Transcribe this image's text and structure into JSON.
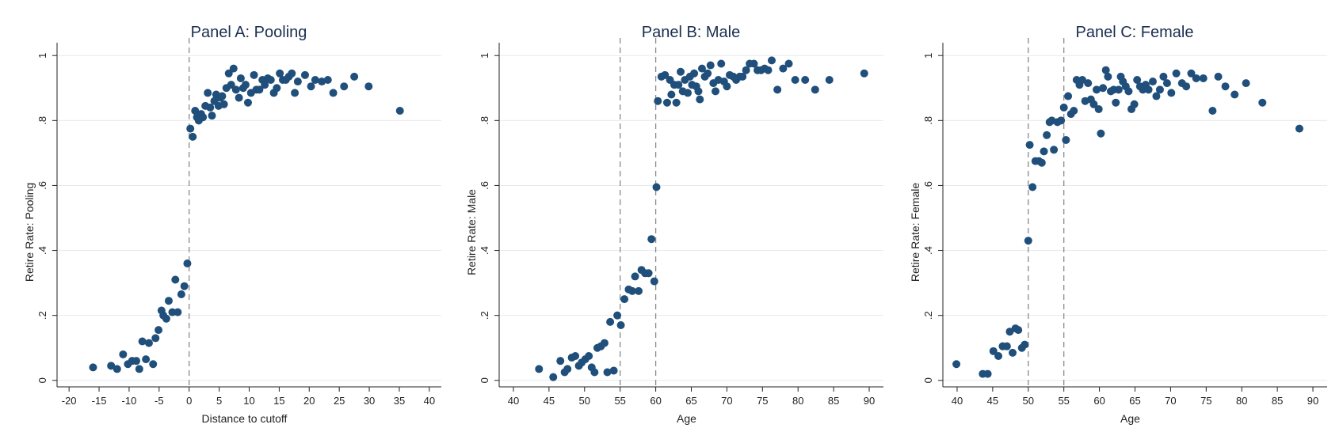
{
  "chart_data": [
    {
      "type": "scatter",
      "title": "Panel A: Pooling",
      "xlabel": "Distance to cutoff",
      "ylabel": "Retire Rate: Pooling",
      "xlim": [
        -22,
        42
      ],
      "ylim": [
        -0.02,
        1.02
      ],
      "xticks": [
        -20,
        -15,
        -10,
        -5,
        0,
        5,
        10,
        15,
        20,
        25,
        30,
        35,
        40
      ],
      "xtick_labels": [
        "-20",
        "-15",
        "-10",
        "-5",
        "0",
        "5",
        "10",
        "15",
        "20",
        "25",
        "30",
        "35",
        "40"
      ],
      "yticks": [
        0,
        0.2,
        0.4,
        0.6,
        0.8,
        1
      ],
      "ytick_labels": [
        "0",
        ".2",
        ".4",
        ".6",
        ".8",
        "1"
      ],
      "vlines": [
        0
      ],
      "grid": true,
      "color": "#1f4f7a",
      "points": [
        [
          -16,
          0.04
        ],
        [
          -13,
          0.045
        ],
        [
          -12,
          0.035
        ],
        [
          -11,
          0.08
        ],
        [
          -10.2,
          0.05
        ],
        [
          -9.5,
          0.06
        ],
        [
          -8.8,
          0.06
        ],
        [
          -8.3,
          0.035
        ],
        [
          -7.8,
          0.12
        ],
        [
          -7.2,
          0.065
        ],
        [
          -6.7,
          0.115
        ],
        [
          -6,
          0.05
        ],
        [
          -5.6,
          0.13
        ],
        [
          -5.1,
          0.155
        ],
        [
          -4.6,
          0.215
        ],
        [
          -4.3,
          0.2
        ],
        [
          -3.8,
          0.19
        ],
        [
          -3.4,
          0.245
        ],
        [
          -2.8,
          0.21
        ],
        [
          -2.3,
          0.31
        ],
        [
          -1.9,
          0.21
        ],
        [
          -1.3,
          0.265
        ],
        [
          -0.8,
          0.29
        ],
        [
          -0.3,
          0.36
        ],
        [
          0.2,
          0.775
        ],
        [
          0.6,
          0.75
        ],
        [
          1,
          0.83
        ],
        [
          1.3,
          0.81
        ],
        [
          1.6,
          0.8
        ],
        [
          2,
          0.82
        ],
        [
          2.3,
          0.81
        ],
        [
          2.7,
          0.845
        ],
        [
          3.1,
          0.885
        ],
        [
          3.5,
          0.84
        ],
        [
          3.8,
          0.815
        ],
        [
          4.2,
          0.86
        ],
        [
          4.5,
          0.88
        ],
        [
          4.9,
          0.845
        ],
        [
          5.2,
          0.87
        ],
        [
          5.5,
          0.875
        ],
        [
          5.8,
          0.85
        ],
        [
          6.2,
          0.9
        ],
        [
          6.6,
          0.945
        ],
        [
          7,
          0.91
        ],
        [
          7.4,
          0.96
        ],
        [
          7.8,
          0.895
        ],
        [
          8.3,
          0.87
        ],
        [
          8.6,
          0.93
        ],
        [
          9,
          0.9
        ],
        [
          9.4,
          0.91
        ],
        [
          9.8,
          0.855
        ],
        [
          10.3,
          0.885
        ],
        [
          10.8,
          0.94
        ],
        [
          11.2,
          0.895
        ],
        [
          11.7,
          0.895
        ],
        [
          12.2,
          0.925
        ],
        [
          12.6,
          0.91
        ],
        [
          13.1,
          0.93
        ],
        [
          13.6,
          0.925
        ],
        [
          14.1,
          0.885
        ],
        [
          14.6,
          0.9
        ],
        [
          15.1,
          0.945
        ],
        [
          15.6,
          0.925
        ],
        [
          16.1,
          0.925
        ],
        [
          16.6,
          0.935
        ],
        [
          17.1,
          0.945
        ],
        [
          17.6,
          0.885
        ],
        [
          18.1,
          0.92
        ],
        [
          19.3,
          0.94
        ],
        [
          20.3,
          0.905
        ],
        [
          21,
          0.925
        ],
        [
          22.1,
          0.92
        ],
        [
          23.1,
          0.925
        ],
        [
          24,
          0.885
        ],
        [
          25.8,
          0.905
        ],
        [
          27.5,
          0.935
        ],
        [
          29.9,
          0.905
        ],
        [
          35.1,
          0.83
        ]
      ]
    },
    {
      "type": "scatter",
      "title": "Panel B: Male",
      "xlabel": "Age",
      "ylabel": "Retire Rate: Male",
      "xlim": [
        38,
        92
      ],
      "ylim": [
        -0.02,
        1.02
      ],
      "xticks": [
        40,
        45,
        50,
        55,
        60,
        65,
        70,
        75,
        80,
        85,
        90
      ],
      "xtick_labels": [
        "40",
        "45",
        "50",
        "55",
        "60",
        "65",
        "70",
        "75",
        "80",
        "85",
        "90"
      ],
      "yticks": [
        0,
        0.2,
        0.4,
        0.6,
        0.8,
        1
      ],
      "ytick_labels": [
        "0",
        ".2",
        ".4",
        ".6",
        ".8",
        "1"
      ],
      "vlines": [
        55,
        60
      ],
      "grid": true,
      "color": "#1f4f7a",
      "points": [
        [
          43.6,
          0.035
        ],
        [
          45.6,
          0.01
        ],
        [
          46.6,
          0.06
        ],
        [
          47.2,
          0.025
        ],
        [
          47.6,
          0.035
        ],
        [
          48.2,
          0.07
        ],
        [
          48.7,
          0.075
        ],
        [
          49.2,
          0.045
        ],
        [
          49.6,
          0.055
        ],
        [
          50.1,
          0.065
        ],
        [
          50.6,
          0.075
        ],
        [
          51,
          0.04
        ],
        [
          51.4,
          0.025
        ],
        [
          51.8,
          0.1
        ],
        [
          52.3,
          0.105
        ],
        [
          52.8,
          0.115
        ],
        [
          53.2,
          0.025
        ],
        [
          53.6,
          0.18
        ],
        [
          54.1,
          0.03
        ],
        [
          54.6,
          0.2
        ],
        [
          55.1,
          0.17
        ],
        [
          55.6,
          0.25
        ],
        [
          56.2,
          0.28
        ],
        [
          56.7,
          0.275
        ],
        [
          57.1,
          0.32
        ],
        [
          57.6,
          0.275
        ],
        [
          58,
          0.34
        ],
        [
          58.5,
          0.33
        ],
        [
          59,
          0.33
        ],
        [
          59.4,
          0.435
        ],
        [
          59.8,
          0.305
        ],
        [
          60.1,
          0.595
        ],
        [
          60.3,
          0.86
        ],
        [
          60.8,
          0.935
        ],
        [
          61.3,
          0.94
        ],
        [
          61.6,
          0.855
        ],
        [
          62,
          0.925
        ],
        [
          62.2,
          0.88
        ],
        [
          62.6,
          0.91
        ],
        [
          62.9,
          0.855
        ],
        [
          63.2,
          0.91
        ],
        [
          63.5,
          0.95
        ],
        [
          63.8,
          0.89
        ],
        [
          64.1,
          0.925
        ],
        [
          64.5,
          0.885
        ],
        [
          64.8,
          0.935
        ],
        [
          65.1,
          0.91
        ],
        [
          65.4,
          0.945
        ],
        [
          65.7,
          0.905
        ],
        [
          66,
          0.89
        ],
        [
          66.2,
          0.865
        ],
        [
          66.5,
          0.96
        ],
        [
          66.9,
          0.935
        ],
        [
          67.3,
          0.945
        ],
        [
          67.7,
          0.97
        ],
        [
          68.1,
          0.915
        ],
        [
          68.4,
          0.89
        ],
        [
          68.8,
          0.925
        ],
        [
          69.2,
          0.975
        ],
        [
          69.6,
          0.92
        ],
        [
          70,
          0.905
        ],
        [
          70.4,
          0.94
        ],
        [
          70.9,
          0.935
        ],
        [
          71.3,
          0.925
        ],
        [
          71.8,
          0.935
        ],
        [
          72.2,
          0.935
        ],
        [
          72.7,
          0.955
        ],
        [
          73.2,
          0.975
        ],
        [
          73.8,
          0.975
        ],
        [
          74.3,
          0.955
        ],
        [
          74.8,
          0.955
        ],
        [
          75.3,
          0.96
        ],
        [
          75.8,
          0.955
        ],
        [
          76.3,
          0.985
        ],
        [
          77.1,
          0.895
        ],
        [
          77.9,
          0.96
        ],
        [
          78.7,
          0.975
        ],
        [
          79.6,
          0.925
        ],
        [
          81,
          0.925
        ],
        [
          82.4,
          0.895
        ],
        [
          84.4,
          0.925
        ],
        [
          89.3,
          0.945
        ]
      ]
    },
    {
      "type": "scatter",
      "title": "Panel C: Female",
      "xlabel": "Age",
      "ylabel": "Retire Rate: Female",
      "xlim": [
        38,
        92
      ],
      "ylim": [
        -0.02,
        1.02
      ],
      "xticks": [
        40,
        45,
        50,
        55,
        60,
        65,
        70,
        75,
        80,
        85,
        90
      ],
      "xtick_labels": [
        "40",
        "45",
        "50",
        "55",
        "60",
        "65",
        "70",
        "75",
        "80",
        "85",
        "90"
      ],
      "yticks": [
        0,
        0.2,
        0.4,
        0.6,
        0.8,
        1
      ],
      "ytick_labels": [
        "0",
        ".2",
        ".4",
        ".6",
        ".8",
        "1"
      ],
      "vlines": [
        50,
        55
      ],
      "grid": true,
      "color": "#1f4f7a",
      "points": [
        [
          39.9,
          0.05
        ],
        [
          43.6,
          0.02
        ],
        [
          44.3,
          0.02
        ],
        [
          45.1,
          0.09
        ],
        [
          45.8,
          0.075
        ],
        [
          46.4,
          0.105
        ],
        [
          47,
          0.105
        ],
        [
          47.4,
          0.15
        ],
        [
          47.8,
          0.085
        ],
        [
          48.2,
          0.16
        ],
        [
          48.6,
          0.155
        ],
        [
          49.1,
          0.1
        ],
        [
          49.5,
          0.11
        ],
        [
          50,
          0.43
        ],
        [
          50.2,
          0.725
        ],
        [
          50.6,
          0.595
        ],
        [
          51,
          0.675
        ],
        [
          51.5,
          0.675
        ],
        [
          51.9,
          0.67
        ],
        [
          52.2,
          0.705
        ],
        [
          52.6,
          0.755
        ],
        [
          53,
          0.795
        ],
        [
          53.3,
          0.8
        ],
        [
          53.6,
          0.71
        ],
        [
          54.1,
          0.795
        ],
        [
          54.6,
          0.8
        ],
        [
          55,
          0.84
        ],
        [
          55.3,
          0.74
        ],
        [
          55.6,
          0.875
        ],
        [
          56,
          0.82
        ],
        [
          56.4,
          0.83
        ],
        [
          56.8,
          0.925
        ],
        [
          57.2,
          0.91
        ],
        [
          57.6,
          0.925
        ],
        [
          58,
          0.86
        ],
        [
          58.4,
          0.915
        ],
        [
          58.8,
          0.865
        ],
        [
          59.2,
          0.85
        ],
        [
          59.6,
          0.895
        ],
        [
          59.9,
          0.835
        ],
        [
          60.2,
          0.76
        ],
        [
          60.5,
          0.9
        ],
        [
          60.9,
          0.955
        ],
        [
          61.2,
          0.935
        ],
        [
          61.6,
          0.89
        ],
        [
          62,
          0.895
        ],
        [
          62.3,
          0.855
        ],
        [
          62.7,
          0.895
        ],
        [
          63,
          0.935
        ],
        [
          63.3,
          0.92
        ],
        [
          63.7,
          0.905
        ],
        [
          64.1,
          0.89
        ],
        [
          64.5,
          0.835
        ],
        [
          64.9,
          0.85
        ],
        [
          65.3,
          0.925
        ],
        [
          65.7,
          0.905
        ],
        [
          66.1,
          0.895
        ],
        [
          66.5,
          0.91
        ],
        [
          66.9,
          0.895
        ],
        [
          67.5,
          0.92
        ],
        [
          68,
          0.875
        ],
        [
          68.5,
          0.895
        ],
        [
          69,
          0.935
        ],
        [
          69.5,
          0.915
        ],
        [
          70.1,
          0.885
        ],
        [
          70.8,
          0.945
        ],
        [
          71.6,
          0.915
        ],
        [
          72.2,
          0.905
        ],
        [
          72.9,
          0.945
        ],
        [
          73.6,
          0.93
        ],
        [
          74.6,
          0.93
        ],
        [
          75.9,
          0.83
        ],
        [
          76.7,
          0.935
        ],
        [
          77.7,
          0.905
        ],
        [
          79,
          0.88
        ],
        [
          80.6,
          0.915
        ],
        [
          82.9,
          0.855
        ],
        [
          88.1,
          0.775
        ]
      ]
    }
  ]
}
